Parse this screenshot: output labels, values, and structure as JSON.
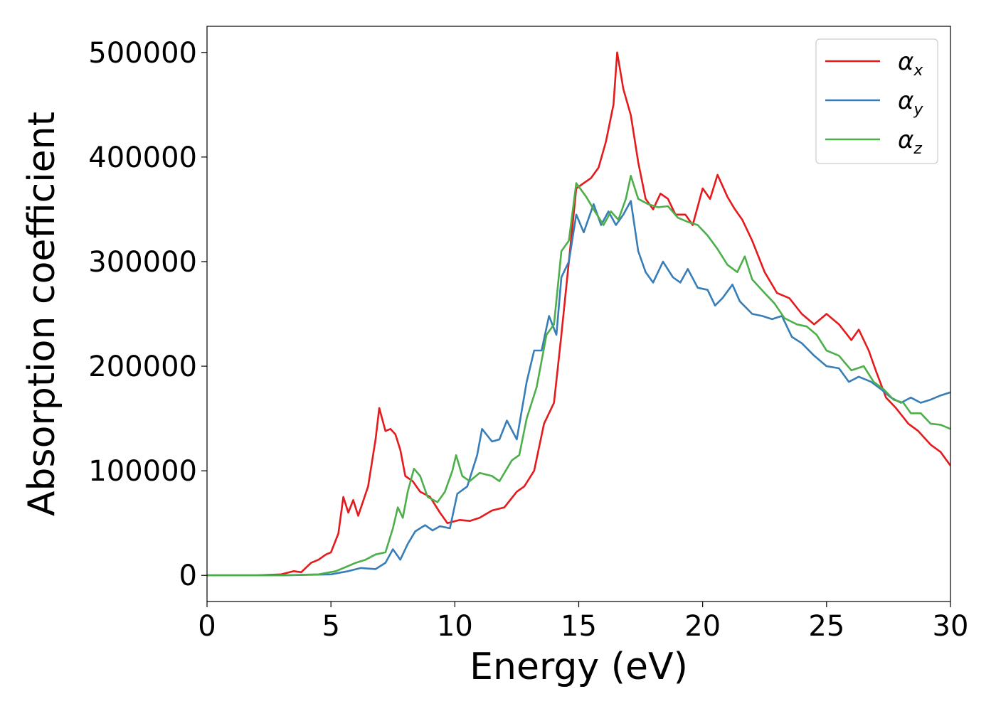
{
  "chart_data": {
    "type": "line",
    "title": "",
    "xlabel": "Energy (eV)",
    "ylabel": "Absorption coefficient",
    "xlim": [
      0,
      30
    ],
    "ylim": [
      -25000,
      525000
    ],
    "xticks": [
      0,
      5,
      10,
      15,
      20,
      25,
      30
    ],
    "xtick_labels": [
      "0",
      "5",
      "10",
      "15",
      "20",
      "25",
      "30"
    ],
    "yticks": [
      0,
      100000,
      200000,
      300000,
      400000,
      500000
    ],
    "ytick_labels": [
      "0",
      "100000",
      "200000",
      "300000",
      "400000",
      "500000"
    ],
    "grid": false,
    "legend_position": "top-right",
    "series": [
      {
        "name": "αx",
        "symbol": "α",
        "subscript": "x",
        "color": "#e41a1c",
        "points": [
          [
            0,
            0
          ],
          [
            2,
            0
          ],
          [
            3,
            1000
          ],
          [
            3.5,
            4000
          ],
          [
            3.8,
            3000
          ],
          [
            4.2,
            12000
          ],
          [
            4.5,
            15000
          ],
          [
            4.8,
            20000
          ],
          [
            5,
            22000
          ],
          [
            5.3,
            40000
          ],
          [
            5.5,
            75000
          ],
          [
            5.7,
            60000
          ],
          [
            5.9,
            72000
          ],
          [
            6.1,
            57000
          ],
          [
            6.5,
            85000
          ],
          [
            6.8,
            130000
          ],
          [
            6.95,
            160000
          ],
          [
            7.2,
            138000
          ],
          [
            7.4,
            140000
          ],
          [
            7.6,
            135000
          ],
          [
            7.8,
            120000
          ],
          [
            8,
            95000
          ],
          [
            8.3,
            90000
          ],
          [
            8.6,
            80000
          ],
          [
            9,
            75000
          ],
          [
            9.4,
            60000
          ],
          [
            9.7,
            50000
          ],
          [
            10.2,
            53000
          ],
          [
            10.6,
            52000
          ],
          [
            11,
            55000
          ],
          [
            11.5,
            62000
          ],
          [
            12,
            65000
          ],
          [
            12.5,
            80000
          ],
          [
            12.8,
            85000
          ],
          [
            13.2,
            100000
          ],
          [
            13.6,
            145000
          ],
          [
            14,
            165000
          ],
          [
            14.3,
            230000
          ],
          [
            14.6,
            300000
          ],
          [
            14.9,
            370000
          ],
          [
            15.2,
            375000
          ],
          [
            15.5,
            380000
          ],
          [
            15.8,
            390000
          ],
          [
            16.1,
            415000
          ],
          [
            16.4,
            450000
          ],
          [
            16.55,
            500000
          ],
          [
            16.8,
            465000
          ],
          [
            17.1,
            440000
          ],
          [
            17.4,
            395000
          ],
          [
            17.7,
            360000
          ],
          [
            18,
            350000
          ],
          [
            18.3,
            365000
          ],
          [
            18.6,
            360000
          ],
          [
            18.9,
            345000
          ],
          [
            19.3,
            345000
          ],
          [
            19.6,
            335000
          ],
          [
            20,
            370000
          ],
          [
            20.3,
            360000
          ],
          [
            20.6,
            383000
          ],
          [
            21,
            362000
          ],
          [
            21.3,
            350000
          ],
          [
            21.6,
            340000
          ],
          [
            22,
            320000
          ],
          [
            22.5,
            290000
          ],
          [
            23,
            270000
          ],
          [
            23.5,
            265000
          ],
          [
            24,
            250000
          ],
          [
            24.5,
            240000
          ],
          [
            25,
            250000
          ],
          [
            25.5,
            240000
          ],
          [
            26,
            225000
          ],
          [
            26.3,
            235000
          ],
          [
            26.7,
            215000
          ],
          [
            27,
            195000
          ],
          [
            27.4,
            170000
          ],
          [
            27.8,
            160000
          ],
          [
            28.3,
            145000
          ],
          [
            28.7,
            138000
          ],
          [
            29.2,
            125000
          ],
          [
            29.6,
            118000
          ],
          [
            30,
            105000
          ]
        ]
      },
      {
        "name": "αy",
        "symbol": "α",
        "subscript": "y",
        "color": "#377eb8",
        "points": [
          [
            0,
            0
          ],
          [
            3,
            0
          ],
          [
            5,
            1000
          ],
          [
            5.7,
            4000
          ],
          [
            6.2,
            7000
          ],
          [
            6.8,
            6000
          ],
          [
            7.2,
            12000
          ],
          [
            7.5,
            25000
          ],
          [
            7.8,
            15000
          ],
          [
            8.1,
            30000
          ],
          [
            8.4,
            42000
          ],
          [
            8.8,
            48000
          ],
          [
            9.1,
            43000
          ],
          [
            9.4,
            47000
          ],
          [
            9.8,
            45000
          ],
          [
            10.1,
            78000
          ],
          [
            10.5,
            85000
          ],
          [
            10.9,
            115000
          ],
          [
            11.1,
            140000
          ],
          [
            11.5,
            128000
          ],
          [
            11.8,
            130000
          ],
          [
            12.1,
            148000
          ],
          [
            12.5,
            130000
          ],
          [
            12.9,
            185000
          ],
          [
            13.2,
            215000
          ],
          [
            13.5,
            215000
          ],
          [
            13.8,
            248000
          ],
          [
            14.1,
            230000
          ],
          [
            14.3,
            285000
          ],
          [
            14.6,
            300000
          ],
          [
            14.9,
            345000
          ],
          [
            15.2,
            328000
          ],
          [
            15.6,
            355000
          ],
          [
            15.9,
            335000
          ],
          [
            16.2,
            348000
          ],
          [
            16.5,
            335000
          ],
          [
            16.8,
            345000
          ],
          [
            17.1,
            358000
          ],
          [
            17.4,
            310000
          ],
          [
            17.7,
            290000
          ],
          [
            18,
            280000
          ],
          [
            18.4,
            300000
          ],
          [
            18.8,
            285000
          ],
          [
            19.1,
            280000
          ],
          [
            19.4,
            293000
          ],
          [
            19.8,
            275000
          ],
          [
            20.2,
            273000
          ],
          [
            20.5,
            258000
          ],
          [
            20.8,
            265000
          ],
          [
            21.2,
            278000
          ],
          [
            21.5,
            262000
          ],
          [
            22,
            250000
          ],
          [
            22.4,
            248000
          ],
          [
            22.8,
            245000
          ],
          [
            23.2,
            248000
          ],
          [
            23.6,
            228000
          ],
          [
            24,
            222000
          ],
          [
            24.5,
            210000
          ],
          [
            25,
            200000
          ],
          [
            25.5,
            198000
          ],
          [
            25.9,
            185000
          ],
          [
            26.3,
            190000
          ],
          [
            26.8,
            185000
          ],
          [
            27.2,
            178000
          ],
          [
            27.6,
            170000
          ],
          [
            28,
            165000
          ],
          [
            28.4,
            170000
          ],
          [
            28.8,
            165000
          ],
          [
            29.2,
            168000
          ],
          [
            29.6,
            172000
          ],
          [
            30,
            175000
          ]
        ]
      },
      {
        "name": "αz",
        "symbol": "α",
        "subscript": "z",
        "color": "#4daf4a",
        "points": [
          [
            0,
            0
          ],
          [
            3,
            0
          ],
          [
            4.5,
            1000
          ],
          [
            5.2,
            4000
          ],
          [
            5.6,
            8000
          ],
          [
            6,
            12000
          ],
          [
            6.4,
            15000
          ],
          [
            6.8,
            20000
          ],
          [
            7.2,
            22000
          ],
          [
            7.5,
            45000
          ],
          [
            7.7,
            65000
          ],
          [
            7.9,
            55000
          ],
          [
            8.1,
            80000
          ],
          [
            8.35,
            102000
          ],
          [
            8.6,
            95000
          ],
          [
            8.9,
            75000
          ],
          [
            9.3,
            70000
          ],
          [
            9.6,
            80000
          ],
          [
            9.9,
            100000
          ],
          [
            10.05,
            115000
          ],
          [
            10.3,
            95000
          ],
          [
            10.6,
            90000
          ],
          [
            11,
            98000
          ],
          [
            11.5,
            95000
          ],
          [
            11.8,
            90000
          ],
          [
            12.3,
            110000
          ],
          [
            12.6,
            115000
          ],
          [
            12.9,
            150000
          ],
          [
            13.3,
            180000
          ],
          [
            13.7,
            230000
          ],
          [
            14,
            240000
          ],
          [
            14.3,
            310000
          ],
          [
            14.6,
            320000
          ],
          [
            14.9,
            375000
          ],
          [
            15.3,
            362000
          ],
          [
            15.6,
            350000
          ],
          [
            16,
            335000
          ],
          [
            16.3,
            348000
          ],
          [
            16.6,
            340000
          ],
          [
            16.9,
            360000
          ],
          [
            17.1,
            382000
          ],
          [
            17.4,
            360000
          ],
          [
            17.8,
            355000
          ],
          [
            18.2,
            352000
          ],
          [
            18.6,
            353000
          ],
          [
            19,
            342000
          ],
          [
            19.4,
            338000
          ],
          [
            19.8,
            335000
          ],
          [
            20.2,
            325000
          ],
          [
            20.6,
            312000
          ],
          [
            21,
            297000
          ],
          [
            21.4,
            290000
          ],
          [
            21.7,
            305000
          ],
          [
            22,
            283000
          ],
          [
            22.5,
            270000
          ],
          [
            22.9,
            260000
          ],
          [
            23.3,
            246000
          ],
          [
            23.8,
            240000
          ],
          [
            24.2,
            238000
          ],
          [
            24.6,
            230000
          ],
          [
            25,
            215000
          ],
          [
            25.5,
            210000
          ],
          [
            26,
            196000
          ],
          [
            26.5,
            200000
          ],
          [
            26.9,
            185000
          ],
          [
            27.3,
            178000
          ],
          [
            27.7,
            168000
          ],
          [
            28.1,
            165000
          ],
          [
            28.4,
            155000
          ],
          [
            28.8,
            155000
          ],
          [
            29.2,
            145000
          ],
          [
            29.6,
            144000
          ],
          [
            30,
            140000
          ]
        ]
      }
    ]
  }
}
